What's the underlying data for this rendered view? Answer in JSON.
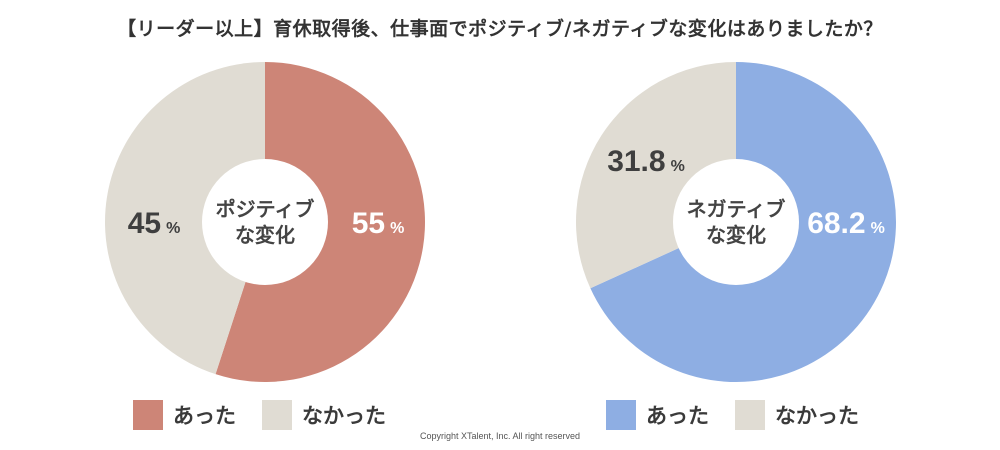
{
  "title": "【リーダー以上】育休取得後、仕事面でポジティブ/ネガティブな変化はありましたか？",
  "chart_data": [
    {
      "type": "pie",
      "center_label": [
        "ポジティブ",
        "な変化"
      ],
      "slices": [
        {
          "label": "あった",
          "value": 55,
          "display": "55",
          "color": "#cd8577"
        },
        {
          "label": "なかった",
          "value": 45,
          "display": "45",
          "color": "#e0dcd3"
        }
      ],
      "unit": "%"
    },
    {
      "type": "pie",
      "center_label": [
        "ネガティブ",
        "な変化"
      ],
      "slices": [
        {
          "label": "あった",
          "value": 68.2,
          "display": "68.2",
          "color": "#8eaee3"
        },
        {
          "label": "なかった",
          "value": 31.8,
          "display": "31.8",
          "color": "#e0dcd3"
        }
      ],
      "unit": "%"
    }
  ],
  "legends": [
    [
      {
        "label": "あった",
        "color": "#cd8577"
      },
      {
        "label": "なかった",
        "color": "#e0dcd3"
      }
    ],
    [
      {
        "label": "あった",
        "color": "#8eaee3"
      },
      {
        "label": "なかった",
        "color": "#e0dcd3"
      }
    ]
  ],
  "colors": {
    "value_on_dark": "#ffffff",
    "value_on_light": "#3f3f3f"
  },
  "copyright": "Copyright XTalent, Inc. All right reserved"
}
